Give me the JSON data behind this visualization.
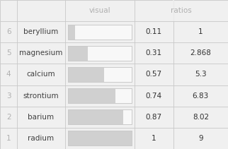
{
  "rows": [
    {
      "index": "6",
      "element": "beryllium",
      "visual": 0.11,
      "ratio": "1"
    },
    {
      "index": "5",
      "element": "magnesium",
      "visual": 0.31,
      "ratio": "2.868"
    },
    {
      "index": "4",
      "element": "calcium",
      "visual": 0.57,
      "ratio": "5.3"
    },
    {
      "index": "3",
      "element": "strontium",
      "visual": 0.74,
      "ratio": "6.83"
    },
    {
      "index": "2",
      "element": "barium",
      "visual": 0.87,
      "ratio": "8.02"
    },
    {
      "index": "1",
      "element": "radium",
      "visual": 1.0,
      "ratio": "9"
    }
  ],
  "bg_color": "#e8e8e8",
  "cell_bg": "#f0f0f0",
  "line_color": "#c8c8c8",
  "index_color": "#b0b0b0",
  "element_color": "#404040",
  "header_color": "#b0b0b0",
  "value_color": "#303030",
  "bar_fill_color": "#d0d0d0",
  "bar_bg_color": "#f8f8f8",
  "bar_border_color": "#c8c8c8",
  "figsize": [
    3.22,
    2.11
  ],
  "dpi": 100
}
